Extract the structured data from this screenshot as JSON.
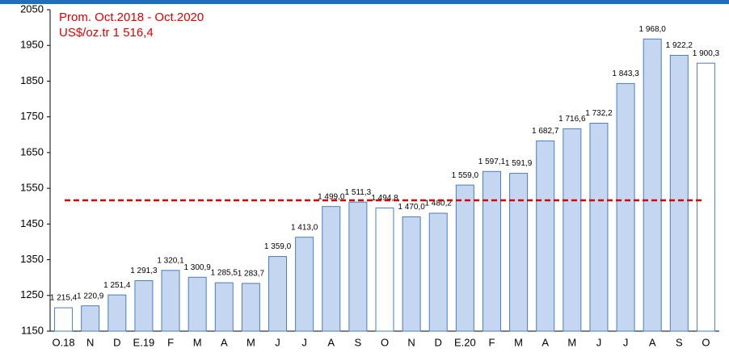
{
  "chart_data": {
    "type": "bar",
    "categories": [
      "O.18",
      "N",
      "D",
      "E.19",
      "F",
      "M",
      "A",
      "M",
      "J",
      "J",
      "A",
      "S",
      "O",
      "N",
      "D",
      "E.20",
      "F",
      "M",
      "A",
      "M",
      "J",
      "J",
      "A",
      "S",
      "O"
    ],
    "values": [
      1215.4,
      1220.9,
      1251.4,
      1291.3,
      1320.1,
      1300.9,
      1285.5,
      1283.7,
      1359.0,
      1413.0,
      1499.0,
      1511.3,
      1494.8,
      1470.0,
      1480.2,
      1559.0,
      1597.1,
      1591.9,
      1682.7,
      1716.6,
      1732.2,
      1843.3,
      1968.0,
      1922.2,
      1900.3
    ],
    "value_labels": [
      "1 215,4",
      "1 220,9",
      "1 251,4",
      "1 291,3",
      "1 320,1",
      "1 300,9",
      "1 285,5",
      "1 283,7",
      "1 359,0",
      "1 413,0",
      "1 499,0",
      "1 511,3",
      "1 494,8",
      "1 470,0",
      "1 480,2",
      "1 559,0",
      "1 597,1",
      "1 591,9",
      "1 682,7",
      "1 716,6",
      "1 732,2",
      "1 843,3",
      "1 968,0",
      "1 922,2",
      "1 900,3"
    ],
    "colors": [
      "#ffffff",
      "#c5d7f0",
      "#c5d7f0",
      "#c5d7f0",
      "#c5d7f0",
      "#c5d7f0",
      "#c5d7f0",
      "#c5d7f0",
      "#c5d7f0",
      "#c5d7f0",
      "#c5d7f0",
      "#c5d7f0",
      "#ffffff",
      "#c5d7f0",
      "#c5d7f0",
      "#c5d7f0",
      "#c5d7f0",
      "#c5d7f0",
      "#c5d7f0",
      "#c5d7f0",
      "#c5d7f0",
      "#c5d7f0",
      "#c5d7f0",
      "#c5d7f0",
      "#ffffff"
    ],
    "border_color": "#4a7ebb",
    "average": {
      "value": 1516.4,
      "label": "Prom. Oct.2018 - Oct.2020",
      "value_label": "US$/oz.tr 1 516,4",
      "color": "#e00000"
    },
    "ylim": [
      1150,
      2050
    ],
    "yticks": [
      1150,
      1250,
      1350,
      1450,
      1550,
      1650,
      1750,
      1850,
      1950,
      2050
    ]
  }
}
